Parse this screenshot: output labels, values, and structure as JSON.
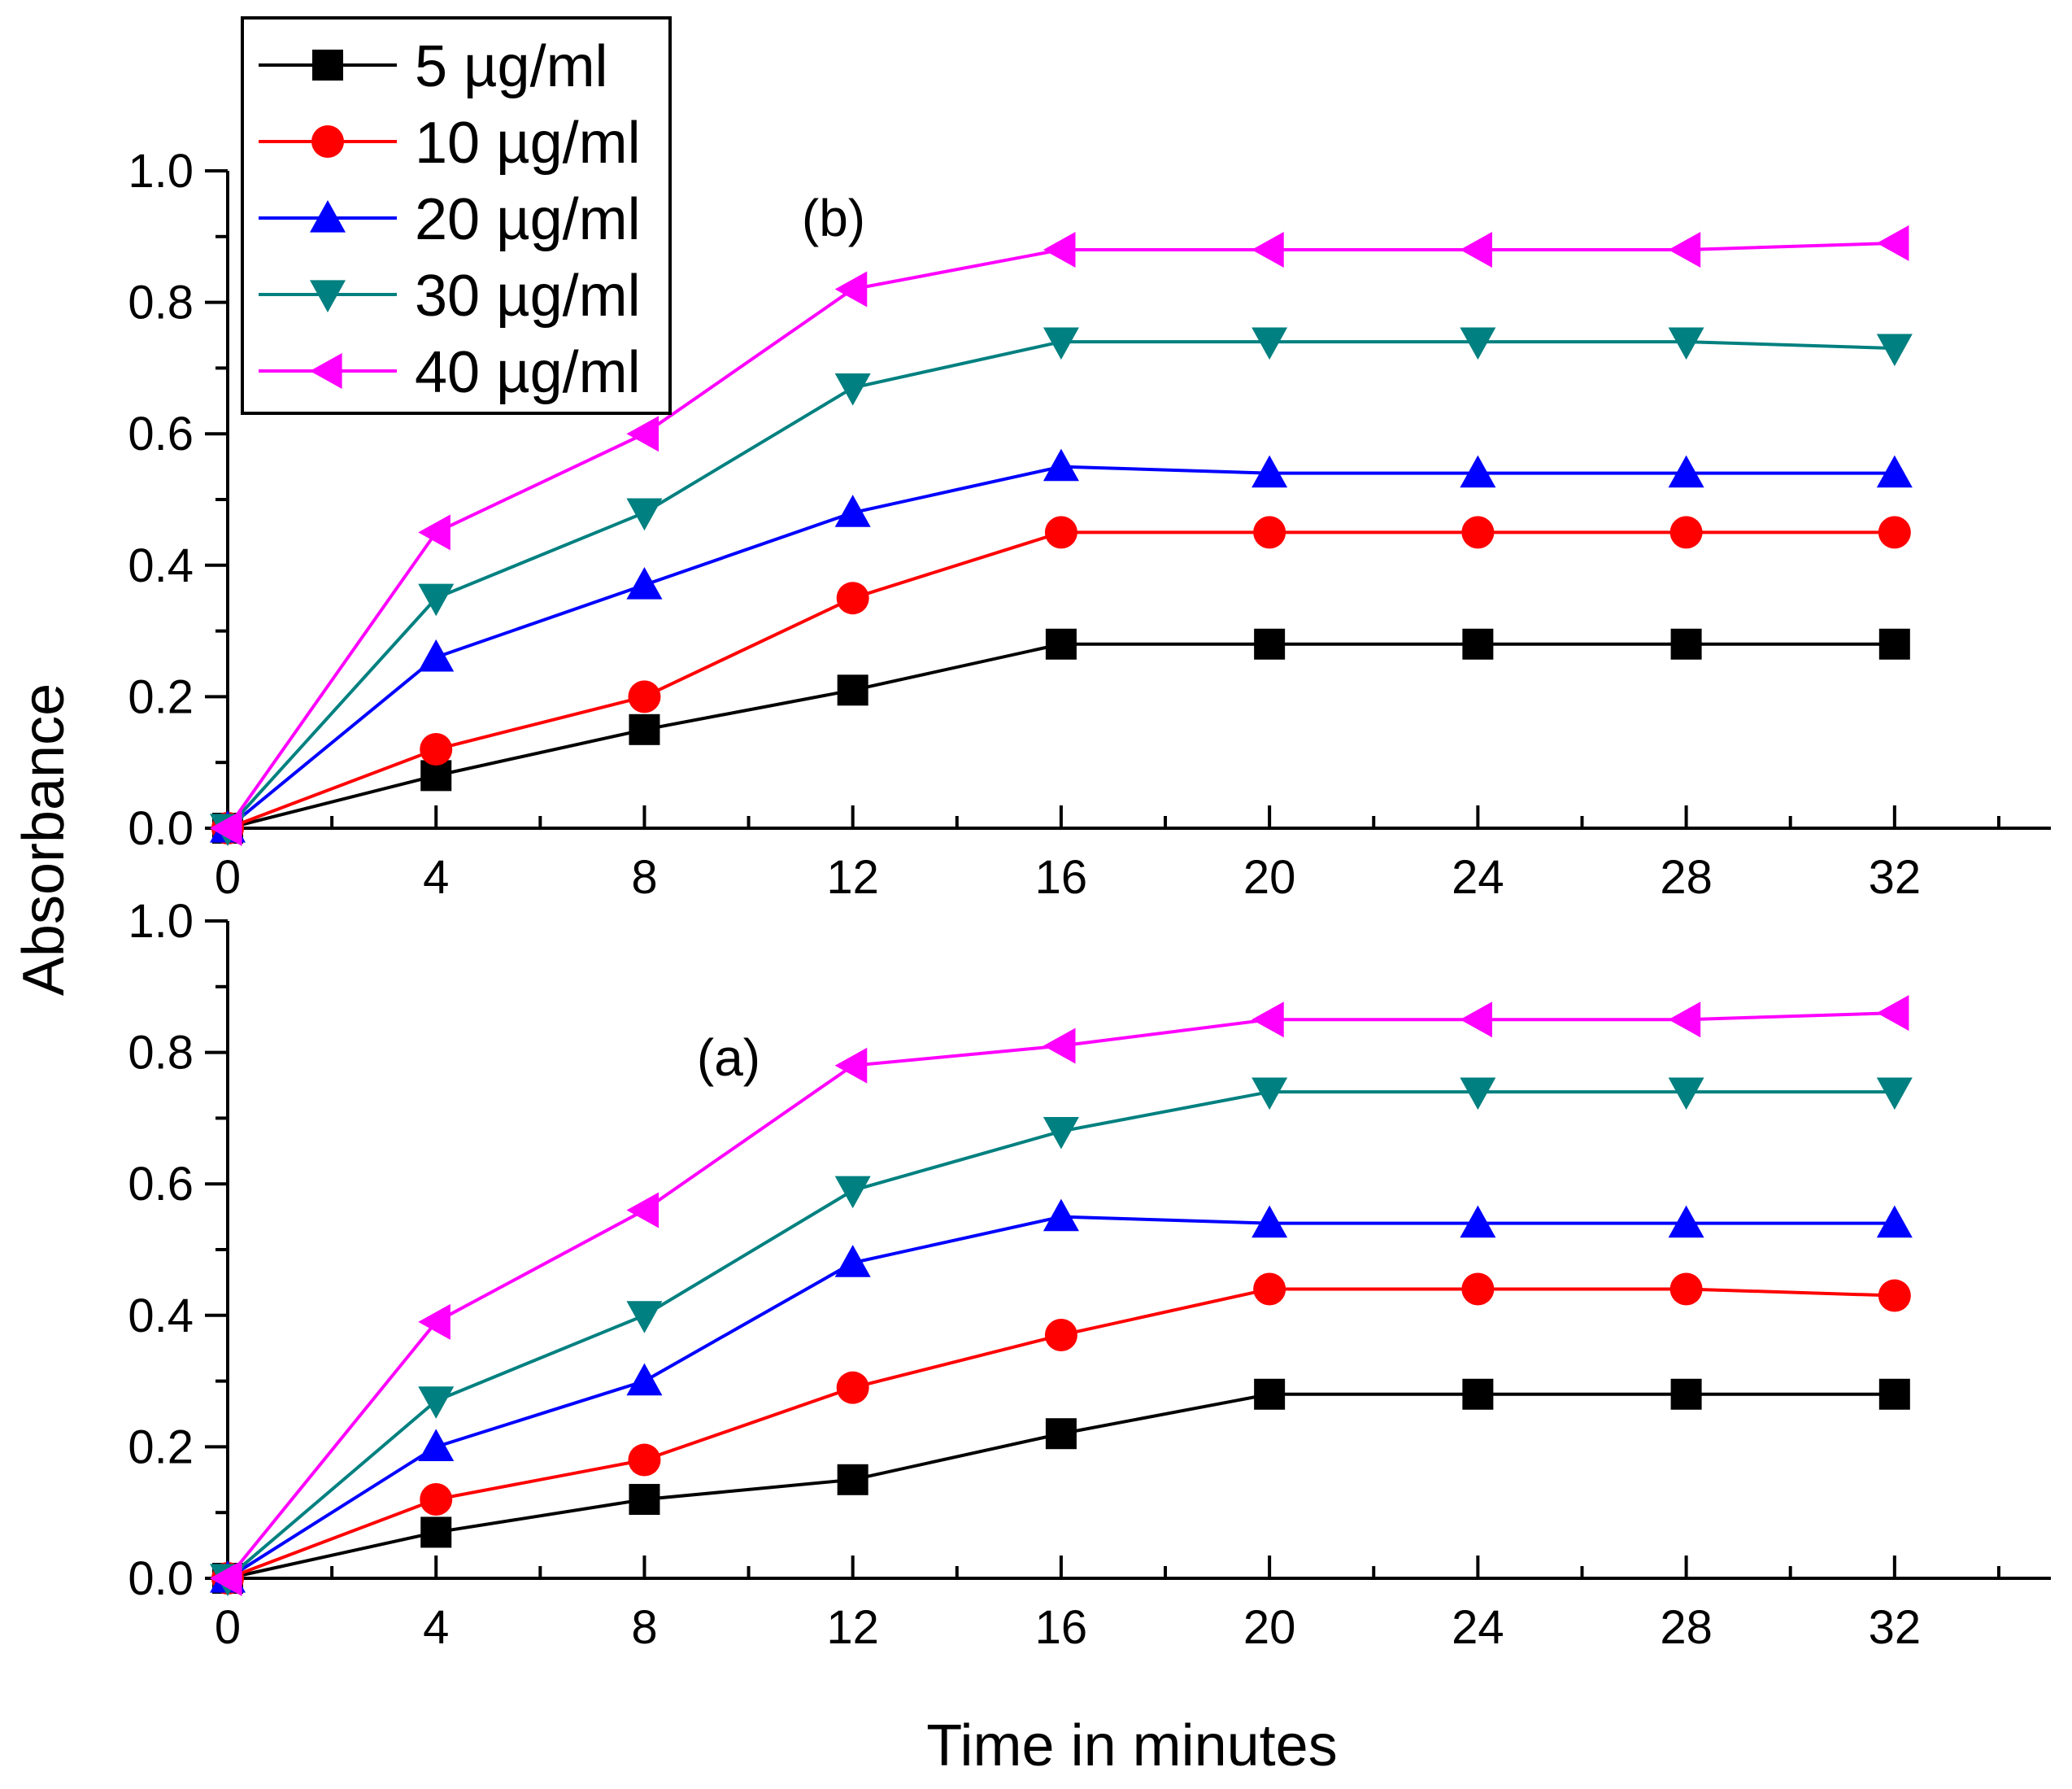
{
  "chart_data": {
    "type": "line",
    "xlabel": "Time in minutes",
    "ylabel": "Absorbance",
    "xlim": [
      0,
      35
    ],
    "ylim": [
      0,
      1.0
    ],
    "x": [
      0,
      4,
      8,
      12,
      16,
      20,
      24,
      28,
      32
    ],
    "x_ticks": [
      0,
      4,
      8,
      12,
      16,
      20,
      24,
      28,
      32
    ],
    "x_tick_labels": [
      "0",
      "4",
      "8",
      "12",
      "16",
      "20",
      "24",
      "28",
      "32"
    ],
    "y_ticks": [
      0.0,
      0.2,
      0.4,
      0.6,
      0.8,
      1.0
    ],
    "y_tick_labels": [
      "0.0",
      "0.2",
      "0.4",
      "0.6",
      "0.8",
      "1.0"
    ],
    "legend": {
      "placement": "top-left",
      "entries": [
        {
          "label": "5 µg/ml",
          "color": "#000000",
          "marker": "square"
        },
        {
          "label": "10 µg/ml",
          "color": "#ff0000",
          "marker": "circle"
        },
        {
          "label": "20 µg/ml",
          "color": "#0000ff",
          "marker": "triangle-up"
        },
        {
          "label": "30 µg/ml",
          "color": "#008080",
          "marker": "triangle-down"
        },
        {
          "label": "40 µg/ml",
          "color": "#ff00ff",
          "marker": "triangle-left"
        }
      ]
    },
    "panels": [
      {
        "id": "b",
        "label": "(b)",
        "position": "top",
        "series": [
          {
            "name": "5 µg/ml",
            "values": [
              0.0,
              0.08,
              0.15,
              0.21,
              0.28,
              0.28,
              0.28,
              0.28,
              0.28
            ]
          },
          {
            "name": "10 µg/ml",
            "values": [
              0.0,
              0.12,
              0.2,
              0.35,
              0.45,
              0.45,
              0.45,
              0.45,
              0.45
            ]
          },
          {
            "name": "20 µg/ml",
            "values": [
              0.0,
              0.26,
              0.37,
              0.48,
              0.55,
              0.54,
              0.54,
              0.54,
              0.54
            ]
          },
          {
            "name": "30 µg/ml",
            "values": [
              0.0,
              0.35,
              0.48,
              0.67,
              0.74,
              0.74,
              0.74,
              0.74,
              0.73
            ]
          },
          {
            "name": "40 µg/ml",
            "values": [
              0.0,
              0.45,
              0.6,
              0.82,
              0.88,
              0.88,
              0.88,
              0.88,
              0.89
            ]
          }
        ]
      },
      {
        "id": "a",
        "label": "(a)",
        "position": "bottom",
        "series": [
          {
            "name": "5 µg/ml",
            "values": [
              0.0,
              0.07,
              0.12,
              0.15,
              0.22,
              0.28,
              0.28,
              0.28,
              0.28
            ]
          },
          {
            "name": "10 µg/ml",
            "values": [
              0.0,
              0.12,
              0.18,
              0.29,
              0.37,
              0.44,
              0.44,
              0.44,
              0.43
            ]
          },
          {
            "name": "20 µg/ml",
            "values": [
              0.0,
              0.2,
              0.3,
              0.48,
              0.55,
              0.54,
              0.54,
              0.54,
              0.54
            ]
          },
          {
            "name": "30 µg/ml",
            "values": [
              0.0,
              0.27,
              0.4,
              0.59,
              0.68,
              0.74,
              0.74,
              0.74,
              0.74
            ]
          },
          {
            "name": "40 µg/ml",
            "values": [
              0.0,
              0.39,
              0.56,
              0.78,
              0.81,
              0.85,
              0.85,
              0.85,
              0.86
            ]
          }
        ]
      }
    ]
  }
}
